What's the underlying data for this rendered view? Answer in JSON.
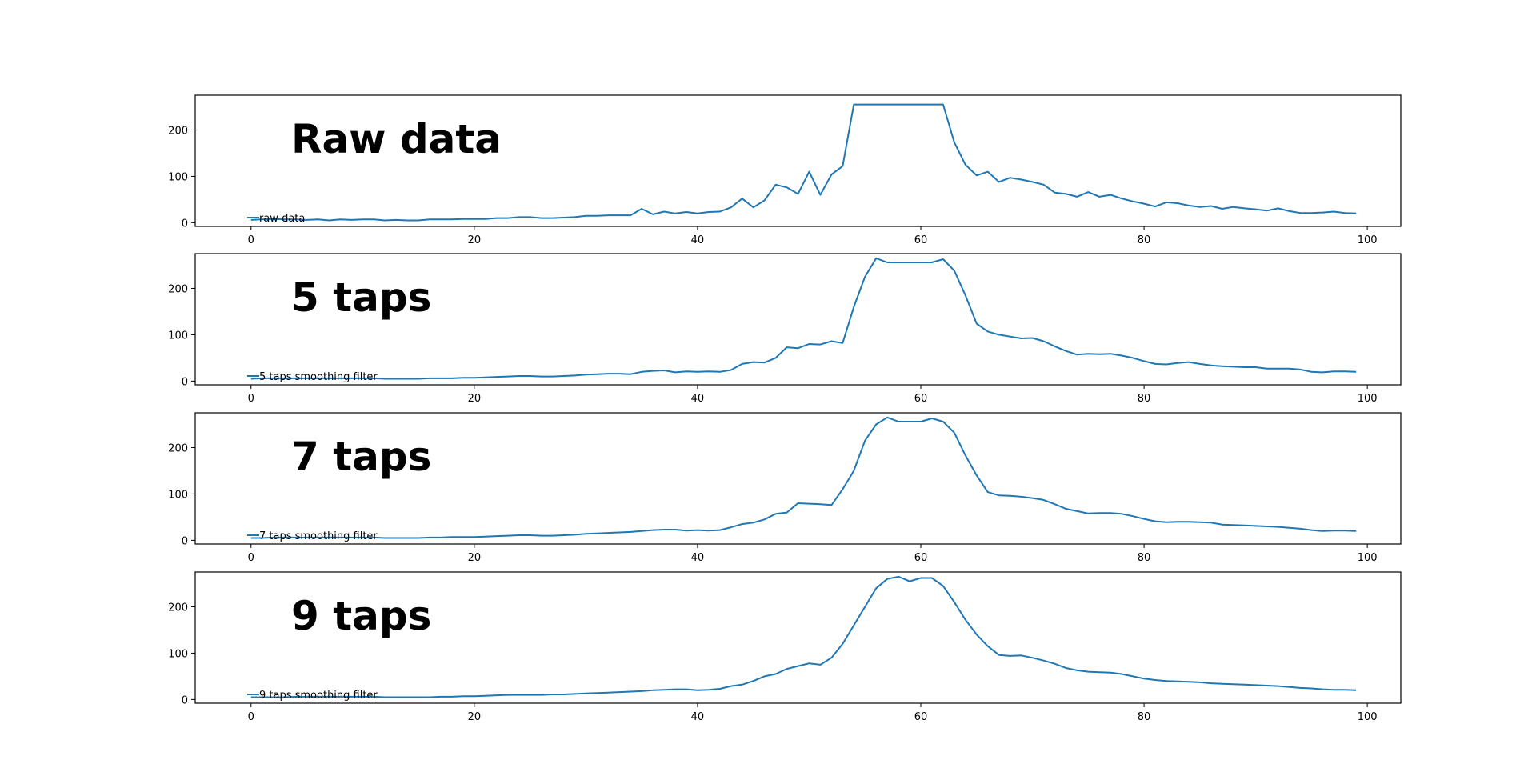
{
  "chart_data": [
    {
      "type": "line",
      "annotation": "Raw data",
      "legend": "raw data",
      "legend_position": "lower-left",
      "xlim": [
        -5,
        103
      ],
      "ylim": [
        -8,
        275
      ],
      "xticks": [
        0,
        20,
        40,
        60,
        80,
        100
      ],
      "yticks": [
        0,
        100,
        200
      ],
      "series": [
        {
          "name": "raw data",
          "x": [
            0,
            1,
            2,
            3,
            4,
            5,
            6,
            7,
            8,
            9,
            10,
            11,
            12,
            13,
            14,
            15,
            16,
            17,
            18,
            19,
            20,
            21,
            22,
            23,
            24,
            25,
            26,
            27,
            28,
            29,
            30,
            31,
            32,
            33,
            34,
            35,
            36,
            37,
            38,
            39,
            40,
            41,
            42,
            43,
            44,
            45,
            46,
            47,
            48,
            49,
            50,
            51,
            52,
            53,
            54,
            55,
            56,
            57,
            58,
            59,
            60,
            61,
            62,
            63,
            64,
            65,
            66,
            67,
            68,
            69,
            70,
            71,
            72,
            73,
            74,
            75,
            76,
            77,
            78,
            79,
            80,
            81,
            82,
            83,
            84,
            85,
            86,
            87,
            88,
            89,
            90,
            91,
            92,
            93,
            94,
            95,
            96,
            97,
            98,
            99
          ],
          "y": [
            6,
            7,
            8,
            7,
            7,
            6,
            7,
            5,
            7,
            6,
            7,
            7,
            5,
            6,
            5,
            5,
            7,
            7,
            7,
            8,
            8,
            8,
            10,
            10,
            12,
            12,
            10,
            10,
            11,
            12,
            15,
            15,
            16,
            16,
            16,
            30,
            18,
            24,
            20,
            23,
            20,
            23,
            24,
            33,
            52,
            33,
            48,
            82,
            76,
            62,
            110,
            60,
            104,
            122,
            255,
            255,
            255,
            255,
            255,
            255,
            255,
            255,
            255,
            173,
            125,
            102,
            110,
            88,
            97,
            93,
            88,
            82,
            65,
            62,
            56,
            66,
            56,
            60,
            52,
            46,
            41,
            35,
            44,
            42,
            37,
            34,
            36,
            30,
            34,
            31,
            29,
            26,
            31,
            25,
            21,
            21,
            22,
            24,
            21,
            20
          ]
        }
      ]
    },
    {
      "type": "line",
      "annotation": "5 taps",
      "legend": "5 taps smoothing filter",
      "legend_position": "lower-left",
      "xlim": [
        -5,
        103
      ],
      "ylim": [
        -8,
        275
      ],
      "xticks": [
        0,
        20,
        40,
        60,
        80,
        100
      ],
      "yticks": [
        0,
        100,
        200
      ],
      "series": [
        {
          "name": "5 taps smoothing filter",
          "x": [
            0,
            1,
            2,
            3,
            4,
            5,
            6,
            7,
            8,
            9,
            10,
            11,
            12,
            13,
            14,
            15,
            16,
            17,
            18,
            19,
            20,
            21,
            22,
            23,
            24,
            25,
            26,
            27,
            28,
            29,
            30,
            31,
            32,
            33,
            34,
            35,
            36,
            37,
            38,
            39,
            40,
            41,
            42,
            43,
            44,
            45,
            46,
            47,
            48,
            49,
            50,
            51,
            52,
            53,
            54,
            55,
            56,
            57,
            58,
            59,
            60,
            61,
            62,
            63,
            64,
            65,
            66,
            67,
            68,
            69,
            70,
            71,
            72,
            73,
            74,
            75,
            76,
            77,
            78,
            79,
            80,
            81,
            82,
            83,
            84,
            85,
            86,
            87,
            88,
            89,
            90,
            91,
            92,
            93,
            94,
            95,
            96,
            97,
            98,
            99
          ],
          "y": [
            5,
            6,
            6,
            6,
            6,
            6,
            6,
            6,
            6,
            6,
            6,
            6,
            5,
            5,
            5,
            5,
            6,
            6,
            6,
            7,
            7,
            8,
            9,
            10,
            11,
            11,
            10,
            10,
            11,
            12,
            14,
            15,
            16,
            16,
            15,
            20,
            22,
            23,
            19,
            21,
            20,
            21,
            20,
            24,
            37,
            41,
            40,
            50,
            73,
            71,
            80,
            79,
            86,
            82,
            160,
            225,
            265,
            256,
            256,
            256,
            256,
            256,
            263,
            238,
            185,
            124,
            107,
            100,
            96,
            92,
            93,
            86,
            75,
            65,
            57,
            59,
            58,
            59,
            55,
            50,
            43,
            37,
            36,
            39,
            41,
            37,
            34,
            32,
            31,
            30,
            30,
            27,
            27,
            27,
            25,
            20,
            19,
            21,
            21,
            20
          ]
        }
      ]
    },
    {
      "type": "line",
      "annotation": "7 taps",
      "legend": "7 taps smoothing filter",
      "legend_position": "lower-left",
      "xlim": [
        -5,
        103
      ],
      "ylim": [
        -8,
        275
      ],
      "xticks": [
        0,
        20,
        40,
        60,
        80,
        100
      ],
      "yticks": [
        0,
        100,
        200
      ],
      "series": [
        {
          "name": "7 taps smoothing filter",
          "x": [
            0,
            1,
            2,
            3,
            4,
            5,
            6,
            7,
            8,
            9,
            10,
            11,
            12,
            13,
            14,
            15,
            16,
            17,
            18,
            19,
            20,
            21,
            22,
            23,
            24,
            25,
            26,
            27,
            28,
            29,
            30,
            31,
            32,
            33,
            34,
            35,
            36,
            37,
            38,
            39,
            40,
            41,
            42,
            43,
            44,
            45,
            46,
            47,
            48,
            49,
            50,
            51,
            52,
            53,
            54,
            55,
            56,
            57,
            58,
            59,
            60,
            61,
            62,
            63,
            64,
            65,
            66,
            67,
            68,
            69,
            70,
            71,
            72,
            73,
            74,
            75,
            76,
            77,
            78,
            79,
            80,
            81,
            82,
            83,
            84,
            85,
            86,
            87,
            88,
            89,
            90,
            91,
            92,
            93,
            94,
            95,
            96,
            97,
            98,
            99
          ],
          "y": [
            5,
            5,
            6,
            6,
            6,
            6,
            6,
            6,
            6,
            6,
            6,
            6,
            5,
            5,
            5,
            5,
            6,
            6,
            7,
            7,
            7,
            8,
            9,
            10,
            11,
            11,
            10,
            10,
            11,
            12,
            14,
            15,
            16,
            17,
            18,
            20,
            22,
            23,
            23,
            21,
            22,
            21,
            22,
            28,
            35,
            38,
            45,
            57,
            60,
            80,
            79,
            78,
            76,
            110,
            150,
            215,
            250,
            265,
            256,
            256,
            256,
            263,
            256,
            232,
            183,
            140,
            104,
            97,
            96,
            94,
            91,
            87,
            78,
            68,
            63,
            58,
            59,
            59,
            57,
            52,
            46,
            41,
            39,
            40,
            40,
            39,
            38,
            34,
            33,
            32,
            31,
            30,
            29,
            27,
            25,
            22,
            20,
            21,
            21,
            20
          ]
        }
      ]
    },
    {
      "type": "line",
      "annotation": "9 taps",
      "legend": "9 taps smoothing filter",
      "legend_position": "lower-left",
      "xlim": [
        -5,
        103
      ],
      "ylim": [
        -8,
        275
      ],
      "xticks": [
        0,
        20,
        40,
        60,
        80,
        100
      ],
      "yticks": [
        0,
        100,
        200
      ],
      "series": [
        {
          "name": "9 taps smoothing filter",
          "x": [
            0,
            1,
            2,
            3,
            4,
            5,
            6,
            7,
            8,
            9,
            10,
            11,
            12,
            13,
            14,
            15,
            16,
            17,
            18,
            19,
            20,
            21,
            22,
            23,
            24,
            25,
            26,
            27,
            28,
            29,
            30,
            31,
            32,
            33,
            34,
            35,
            36,
            37,
            38,
            39,
            40,
            41,
            42,
            43,
            44,
            45,
            46,
            47,
            48,
            49,
            50,
            51,
            52,
            53,
            54,
            55,
            56,
            57,
            58,
            59,
            60,
            61,
            62,
            63,
            64,
            65,
            66,
            67,
            68,
            69,
            70,
            71,
            72,
            73,
            74,
            75,
            76,
            77,
            78,
            79,
            80,
            81,
            82,
            83,
            84,
            85,
            86,
            87,
            88,
            89,
            90,
            91,
            92,
            93,
            94,
            95,
            96,
            97,
            98,
            99
          ],
          "y": [
            5,
            5,
            5,
            5,
            6,
            6,
            6,
            6,
            6,
            6,
            6,
            6,
            5,
            5,
            5,
            5,
            5,
            6,
            6,
            7,
            7,
            8,
            9,
            10,
            10,
            10,
            10,
            11,
            11,
            12,
            13,
            14,
            15,
            16,
            17,
            18,
            20,
            21,
            22,
            22,
            20,
            21,
            23,
            29,
            32,
            40,
            50,
            55,
            66,
            72,
            78,
            75,
            90,
            120,
            160,
            200,
            240,
            260,
            265,
            255,
            262,
            262,
            245,
            210,
            172,
            140,
            115,
            96,
            94,
            95,
            90,
            84,
            77,
            68,
            63,
            60,
            59,
            58,
            55,
            50,
            45,
            42,
            40,
            39,
            38,
            37,
            35,
            34,
            33,
            32,
            31,
            30,
            29,
            27,
            25,
            24,
            22,
            21,
            21,
            20
          ]
        }
      ]
    }
  ],
  "colors": {
    "series": "#1f77b4",
    "frame": "#000000",
    "background": "#ffffff"
  }
}
